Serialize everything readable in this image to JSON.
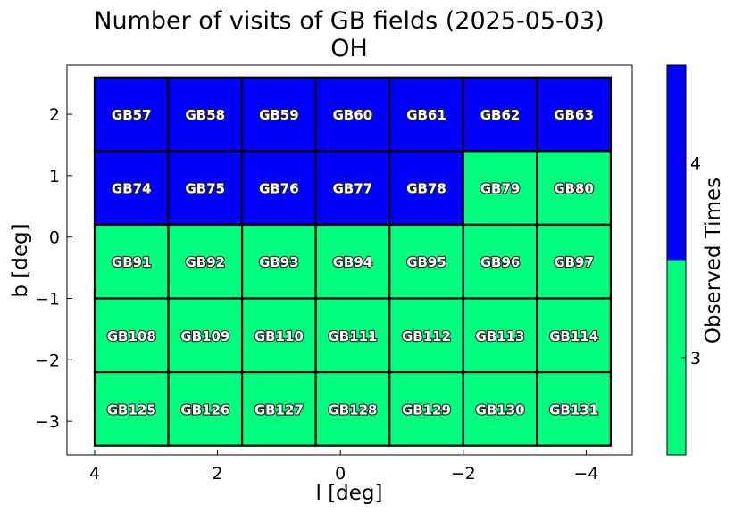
{
  "chart_data": {
    "type": "heatmap",
    "title": "Number of visits of GB fields (2025-05-03)",
    "subtitle": "OH",
    "xlabel": "l [deg]",
    "ylabel": "b [deg]",
    "xlim": [
      4.45,
      -4.75
    ],
    "ylim": [
      -3.55,
      2.8
    ],
    "xticks": [
      4,
      2,
      0,
      -2,
      -4
    ],
    "xtick_labels": [
      "4",
      "2",
      "0",
      "−2",
      "−4"
    ],
    "yticks": [
      2,
      1,
      0,
      -1,
      -2,
      -3
    ],
    "ytick_labels": [
      "2",
      "1",
      "0",
      "−1",
      "−2",
      "−3"
    ],
    "cell_size_deg": 1.2,
    "columns_l": [
      3.4,
      2.2,
      1.0,
      -0.2,
      -1.4,
      -2.6,
      -3.8
    ],
    "rows_b": [
      2.0,
      0.8,
      -0.4,
      -1.6,
      -2.8
    ],
    "row_ytick_centers": [
      2.0,
      0.8,
      -0.4,
      -1.6,
      -2.8
    ],
    "fields": [
      [
        "GB57",
        "GB58",
        "GB59",
        "GB60",
        "GB61",
        "GB62",
        "GB63"
      ],
      [
        "GB74",
        "GB75",
        "GB76",
        "GB77",
        "GB78",
        "GB79",
        "GB80"
      ],
      [
        "GB91",
        "GB92",
        "GB93",
        "GB94",
        "GB95",
        "GB96",
        "GB97"
      ],
      [
        "GB108",
        "GB109",
        "GB110",
        "GB111",
        "GB112",
        "GB113",
        "GB114"
      ],
      [
        "GB125",
        "GB126",
        "GB127",
        "GB128",
        "GB129",
        "GB130",
        "GB131"
      ]
    ],
    "values": [
      [
        4,
        4,
        4,
        4,
        4,
        4,
        4
      ],
      [
        4,
        4,
        4,
        4,
        4,
        3,
        3
      ],
      [
        3,
        3,
        3,
        3,
        3,
        3,
        3
      ],
      [
        3,
        3,
        3,
        3,
        3,
        3,
        3
      ],
      [
        3,
        3,
        3,
        3,
        3,
        3,
        3
      ]
    ],
    "colorbar": {
      "label": "Observed Times",
      "vmin": 2.5,
      "vmax": 4.5,
      "ticks": [
        3,
        4
      ],
      "tick_labels": [
        "3",
        "4"
      ],
      "colors": {
        "3": "#00ff7f",
        "4": "#0000ff"
      }
    },
    "grid": false
  }
}
